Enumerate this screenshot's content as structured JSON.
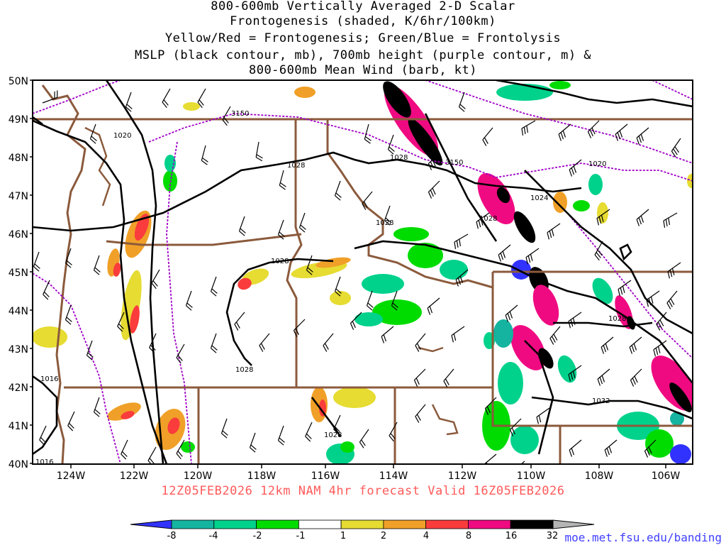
{
  "title": {
    "line1": "800-600mb Vertically Averaged 2-D Scalar",
    "line2": "Frontogenesis (shaded, K/6hr/100km)",
    "line3": "Yellow/Red = Frontogenesis;  Green/Blue = Frontolysis",
    "line4": "MSLP (black contour, mb), 700mb height (purple contour, m) &",
    "line5": "800-600mb Mean Wind (barb, kt)"
  },
  "lat_labels": [
    "50N",
    "49N",
    "48N",
    "47N",
    "46N",
    "45N",
    "44N",
    "43N",
    "42N",
    "41N",
    "40N"
  ],
  "lon_labels": [
    "124W",
    "122W",
    "120W",
    "118W",
    "116W",
    "114W",
    "112W",
    "110W",
    "108W",
    "106W"
  ],
  "contour_labels": {
    "mslp": [
      "1020",
      "1028",
      "1028",
      "1028",
      "1024",
      "1028",
      "1028",
      "1028",
      "1028",
      "1016",
      "1016",
      "1032",
      "1028",
      "1020"
    ],
    "height": [
      "3150",
      "3150"
    ]
  },
  "colorbar": {
    "ticks": [
      "-8",
      "-4",
      "-2",
      "-1",
      "1",
      "2",
      "4",
      "8",
      "16",
      "32"
    ],
    "colors": [
      "#3232ff",
      "#14b4a0",
      "#00d28c",
      "#00dc00",
      "#ffffff",
      "#e6dc32",
      "#f0a028",
      "#fa3c3c",
      "#f00a82",
      "#000000",
      "#b4b4b4"
    ]
  },
  "caption": "12Z05FEB2026 12km NAM 4hr forecast Valid 16Z05FEB2026",
  "url": "moe.met.fsu.edu/banding",
  "colors": {
    "mslp_contour": "#000000",
    "height_contour": "#a000c8",
    "borders": "#8b5a3c",
    "caption": "#ff5a5a",
    "url": "#4040ff"
  }
}
